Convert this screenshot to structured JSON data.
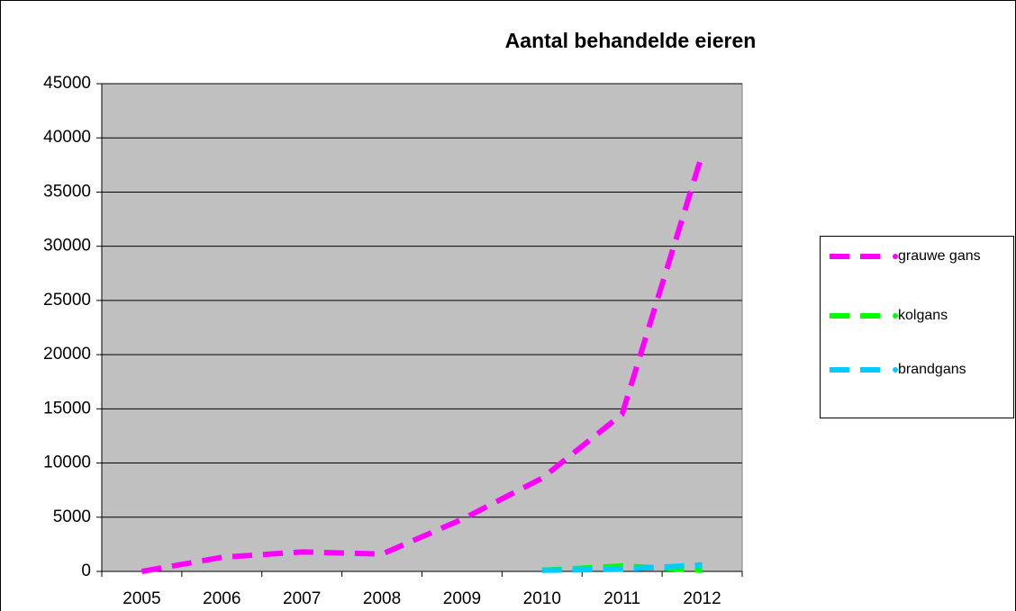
{
  "chart_data": {
    "type": "line",
    "title": "Aantal behandelde eieren",
    "categories": [
      "2005",
      "2006",
      "2007",
      "2008",
      "2009",
      "2010",
      "2011",
      "2012"
    ],
    "series": [
      {
        "name": "grauwe gans",
        "color": "#ff00ff",
        "values": [
          0,
          1300,
          1800,
          1600,
          4800,
          8600,
          14500,
          38500
        ]
      },
      {
        "name": "kolgans",
        "color": "#00ff00",
        "values": [
          null,
          null,
          null,
          null,
          null,
          100,
          500,
          100
        ]
      },
      {
        "name": "brandgans",
        "color": "#00ccff",
        "values": [
          null,
          null,
          null,
          null,
          null,
          100,
          200,
          600
        ]
      }
    ],
    "ylim": [
      0,
      45000
    ],
    "yticks": [
      0,
      5000,
      10000,
      15000,
      20000,
      25000,
      30000,
      35000,
      40000,
      45000
    ],
    "grid": true,
    "legend": "right"
  }
}
